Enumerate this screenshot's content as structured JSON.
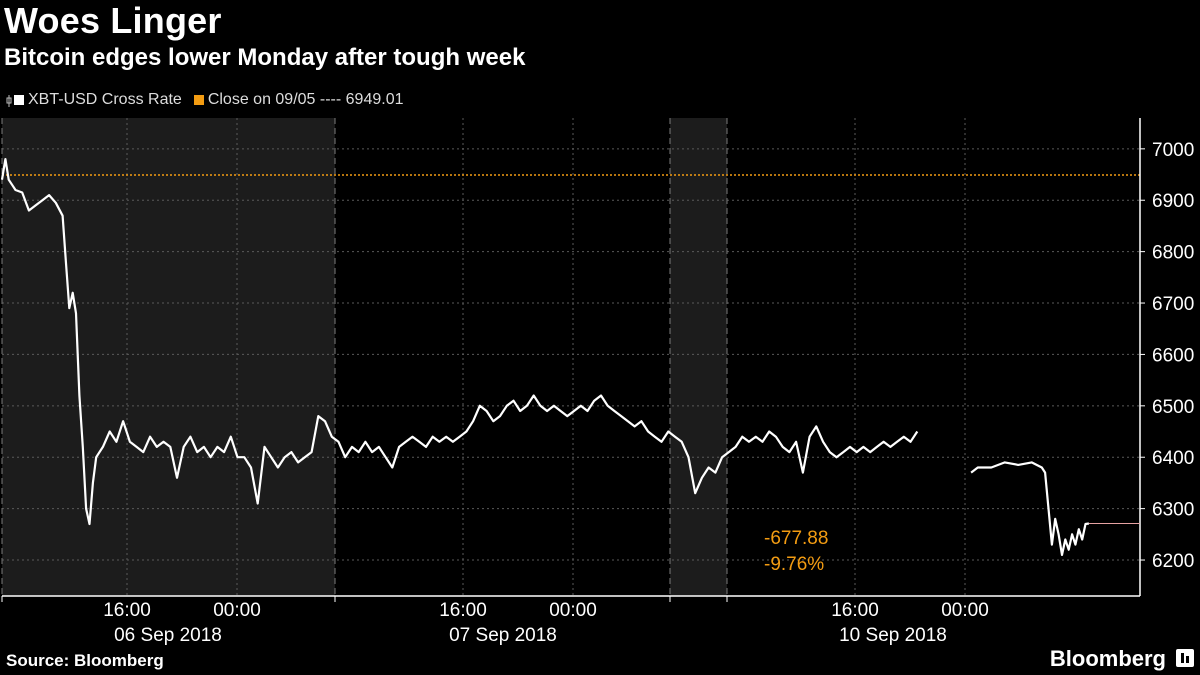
{
  "header": {
    "title": "Woes Linger",
    "subtitle": "Bitcoin edges lower Monday after tough week"
  },
  "legend": {
    "series_label": "XBT-USD Cross Rate",
    "reference_label": "Close on 09/05 ---- 6949.01"
  },
  "footer": {
    "source": "Source: Bloomberg",
    "brand": "Bloomberg"
  },
  "colors": {
    "background": "#000000",
    "line": "#ffffff",
    "reference": "#f39c12",
    "annotation": "#f39c12",
    "shade": "#1c1c1c",
    "grid": "#5a5a5a",
    "last_line": "#e7a3a3"
  },
  "chart_data": {
    "type": "line",
    "title": "Woes Linger",
    "subtitle": "Bitcoin edges lower Monday after tough week",
    "ylim": [
      6130,
      7060
    ],
    "yticks": [
      6200,
      6300,
      6400,
      6500,
      6600,
      6700,
      6800,
      6900,
      7000
    ],
    "reference_line": {
      "label": "Close on 09/05",
      "value": 6949.01
    },
    "annotations": [
      {
        "text": "-677.88"
      },
      {
        "text": "-9.76%"
      }
    ],
    "last_value": 6271.13,
    "x_tick_labels": [
      "16:00",
      "00:00",
      "16:00",
      "00:00",
      "16:00",
      "00:00"
    ],
    "date_labels": [
      "06 Sep 2018",
      "07 Sep 2018",
      "10 Sep 2018"
    ],
    "series": [
      {
        "name": "XBT-USD Cross Rate",
        "segments": [
          [
            [
              0.0,
              6940
            ],
            [
              0.1,
              6980
            ],
            [
              0.2,
              6940
            ],
            [
              0.3,
              6930
            ],
            [
              0.4,
              6920
            ],
            [
              0.6,
              6915
            ],
            [
              0.8,
              6880
            ],
            [
              1.0,
              6890
            ],
            [
              1.2,
              6900
            ],
            [
              1.4,
              6910
            ],
            [
              1.6,
              6895
            ],
            [
              1.8,
              6870
            ],
            [
              1.9,
              6780
            ],
            [
              2.0,
              6690
            ],
            [
              2.1,
              6720
            ],
            [
              2.2,
              6680
            ],
            [
              2.3,
              6520
            ],
            [
              2.4,
              6420
            ],
            [
              2.5,
              6300
            ],
            [
              2.6,
              6270
            ],
            [
              2.7,
              6350
            ],
            [
              2.8,
              6400
            ],
            [
              3.0,
              6420
            ],
            [
              3.2,
              6450
            ],
            [
              3.4,
              6430
            ],
            [
              3.6,
              6470
            ],
            [
              3.8,
              6430
            ],
            [
              4.0,
              6420
            ],
            [
              4.2,
              6410
            ],
            [
              4.4,
              6440
            ],
            [
              4.6,
              6420
            ],
            [
              4.8,
              6430
            ],
            [
              5.0,
              6420
            ],
            [
              5.2,
              6360
            ],
            [
              5.4,
              6420
            ],
            [
              5.6,
              6440
            ],
            [
              5.8,
              6410
            ],
            [
              6.0,
              6420
            ],
            [
              6.2,
              6400
            ],
            [
              6.4,
              6420
            ],
            [
              6.6,
              6410
            ],
            [
              6.8,
              6440
            ],
            [
              7.0,
              6400
            ],
            [
              7.2,
              6400
            ],
            [
              7.4,
              6380
            ],
            [
              7.6,
              6310
            ],
            [
              7.8,
              6420
            ],
            [
              8.0,
              6400
            ],
            [
              8.2,
              6380
            ],
            [
              8.4,
              6400
            ],
            [
              8.6,
              6410
            ],
            [
              8.8,
              6390
            ],
            [
              9.0,
              6400
            ],
            [
              9.2,
              6410
            ],
            [
              9.4,
              6480
            ],
            [
              9.6,
              6470
            ],
            [
              9.8,
              6440
            ],
            [
              10.0,
              6430
            ],
            [
              10.2,
              6400
            ],
            [
              10.4,
              6420
            ],
            [
              10.6,
              6410
            ],
            [
              10.8,
              6430
            ],
            [
              11.0,
              6410
            ],
            [
              11.2,
              6420
            ],
            [
              11.4,
              6400
            ],
            [
              11.6,
              6380
            ],
            [
              11.8,
              6420
            ],
            [
              12.0,
              6430
            ],
            [
              12.2,
              6440
            ],
            [
              12.4,
              6430
            ],
            [
              12.6,
              6420
            ],
            [
              12.8,
              6440
            ],
            [
              13.0,
              6430
            ],
            [
              13.2,
              6440
            ],
            [
              13.4,
              6430
            ],
            [
              13.6,
              6440
            ],
            [
              13.8,
              6450
            ],
            [
              14.0,
              6470
            ],
            [
              14.2,
              6500
            ],
            [
              14.4,
              6490
            ],
            [
              14.6,
              6470
            ],
            [
              14.8,
              6480
            ],
            [
              15.0,
              6500
            ],
            [
              15.2,
              6510
            ],
            [
              15.4,
              6490
            ],
            [
              15.6,
              6500
            ],
            [
              15.8,
              6520
            ],
            [
              16.0,
              6500
            ],
            [
              16.2,
              6490
            ],
            [
              16.4,
              6500
            ],
            [
              16.6,
              6490
            ],
            [
              16.8,
              6480
            ],
            [
              17.0,
              6490
            ],
            [
              17.2,
              6500
            ],
            [
              17.4,
              6490
            ],
            [
              17.6,
              6510
            ],
            [
              17.8,
              6520
            ],
            [
              18.0,
              6500
            ],
            [
              18.2,
              6490
            ],
            [
              18.4,
              6480
            ],
            [
              18.6,
              6470
            ],
            [
              18.8,
              6460
            ],
            [
              19.0,
              6470
            ],
            [
              19.2,
              6450
            ],
            [
              19.4,
              6440
            ],
            [
              19.6,
              6430
            ],
            [
              19.8,
              6450
            ],
            [
              20.0,
              6440
            ],
            [
              20.2,
              6430
            ],
            [
              20.4,
              6400
            ],
            [
              20.6,
              6330
            ],
            [
              20.8,
              6360
            ],
            [
              21.0,
              6380
            ],
            [
              21.2,
              6370
            ],
            [
              21.4,
              6400
            ],
            [
              21.6,
              6410
            ],
            [
              21.8,
              6420
            ],
            [
              22.0,
              6440
            ],
            [
              22.2,
              6430
            ],
            [
              22.4,
              6440
            ],
            [
              22.6,
              6430
            ],
            [
              22.8,
              6450
            ],
            [
              23.0,
              6440
            ],
            [
              23.2,
              6420
            ],
            [
              23.4,
              6410
            ],
            [
              23.6,
              6430
            ],
            [
              23.8,
              6370
            ],
            [
              24.0,
              6440
            ],
            [
              24.2,
              6460
            ],
            [
              24.4,
              6430
            ],
            [
              24.6,
              6410
            ],
            [
              24.8,
              6400
            ],
            [
              25.0,
              6410
            ],
            [
              25.2,
              6420
            ],
            [
              25.4,
              6410
            ],
            [
              25.6,
              6420
            ],
            [
              25.8,
              6410
            ],
            [
              26.0,
              6420
            ],
            [
              26.2,
              6430
            ],
            [
              26.4,
              6420
            ],
            [
              26.6,
              6430
            ],
            [
              26.8,
              6440
            ],
            [
              27.0,
              6430
            ],
            [
              27.2,
              6450
            ]
          ],
          [
            [
              28.8,
              6370
            ],
            [
              29.0,
              6380
            ],
            [
              29.4,
              6380
            ],
            [
              29.8,
              6390
            ],
            [
              30.2,
              6385
            ],
            [
              30.6,
              6390
            ],
            [
              30.9,
              6380
            ],
            [
              31.0,
              6370
            ],
            [
              31.1,
              6300
            ],
            [
              31.2,
              6230
            ],
            [
              31.3,
              6280
            ],
            [
              31.4,
              6250
            ],
            [
              31.5,
              6210
            ],
            [
              31.6,
              6240
            ],
            [
              31.7,
              6220
            ],
            [
              31.8,
              6250
            ],
            [
              31.9,
              6230
            ],
            [
              32.0,
              6260
            ],
            [
              32.1,
              6240
            ],
            [
              32.2,
              6270
            ],
            [
              32.3,
              6271
            ]
          ]
        ]
      }
    ]
  }
}
